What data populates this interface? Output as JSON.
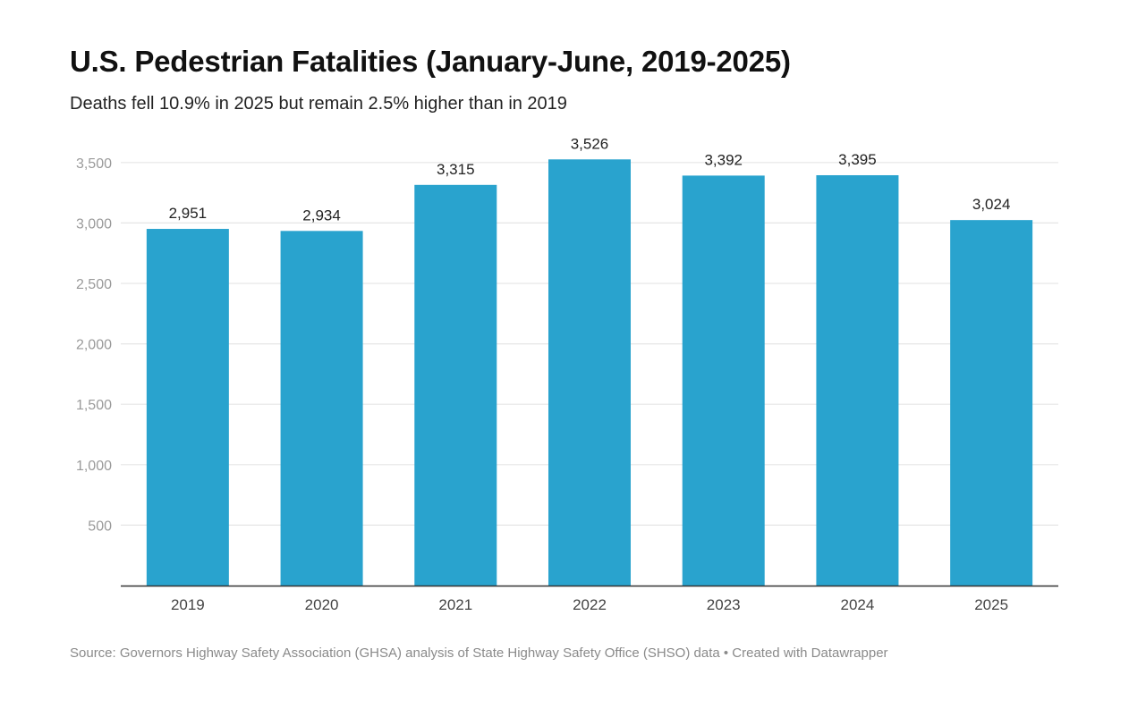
{
  "header": {
    "title": "U.S. Pedestrian Fatalities (January-June, 2019-2025)",
    "subtitle": "Deaths fell 10.9% in 2025 but remain 2.5% higher than in 2019"
  },
  "footer": {
    "source": "Source: Governors Highway Safety Association (GHSA) analysis of State Highway Safety Office (SHSO) data • Created with Datawrapper"
  },
  "colors": {
    "bar": "#29a3ce",
    "grid": "#e6e6e6",
    "axis": "#333333",
    "tick_label": "#9a9a9a",
    "category_label": "#444444",
    "value_label": "#222222"
  },
  "chart_data": {
    "type": "bar",
    "title": "U.S. Pedestrian Fatalities (January-June, 2019-2025)",
    "subtitle": "Deaths fell 10.9% in 2025 but remain 2.5% higher than in 2019",
    "xlabel": "",
    "ylabel": "",
    "categories": [
      "2019",
      "2020",
      "2021",
      "2022",
      "2023",
      "2024",
      "2025"
    ],
    "values": [
      2951,
      2934,
      3315,
      3526,
      3392,
      3395,
      3024
    ],
    "value_labels": [
      "2,951",
      "2,934",
      "3,315",
      "3,526",
      "3,392",
      "3,395",
      "3,024"
    ],
    "ylim": [
      0,
      3500
    ],
    "yticks": [
      500,
      1000,
      1500,
      2000,
      2500,
      3000,
      3500
    ],
    "ytick_labels": [
      "500",
      "1,000",
      "1,500",
      "2,000",
      "2,500",
      "3,000",
      "3,500"
    ],
    "grid": true,
    "legend": "none"
  }
}
